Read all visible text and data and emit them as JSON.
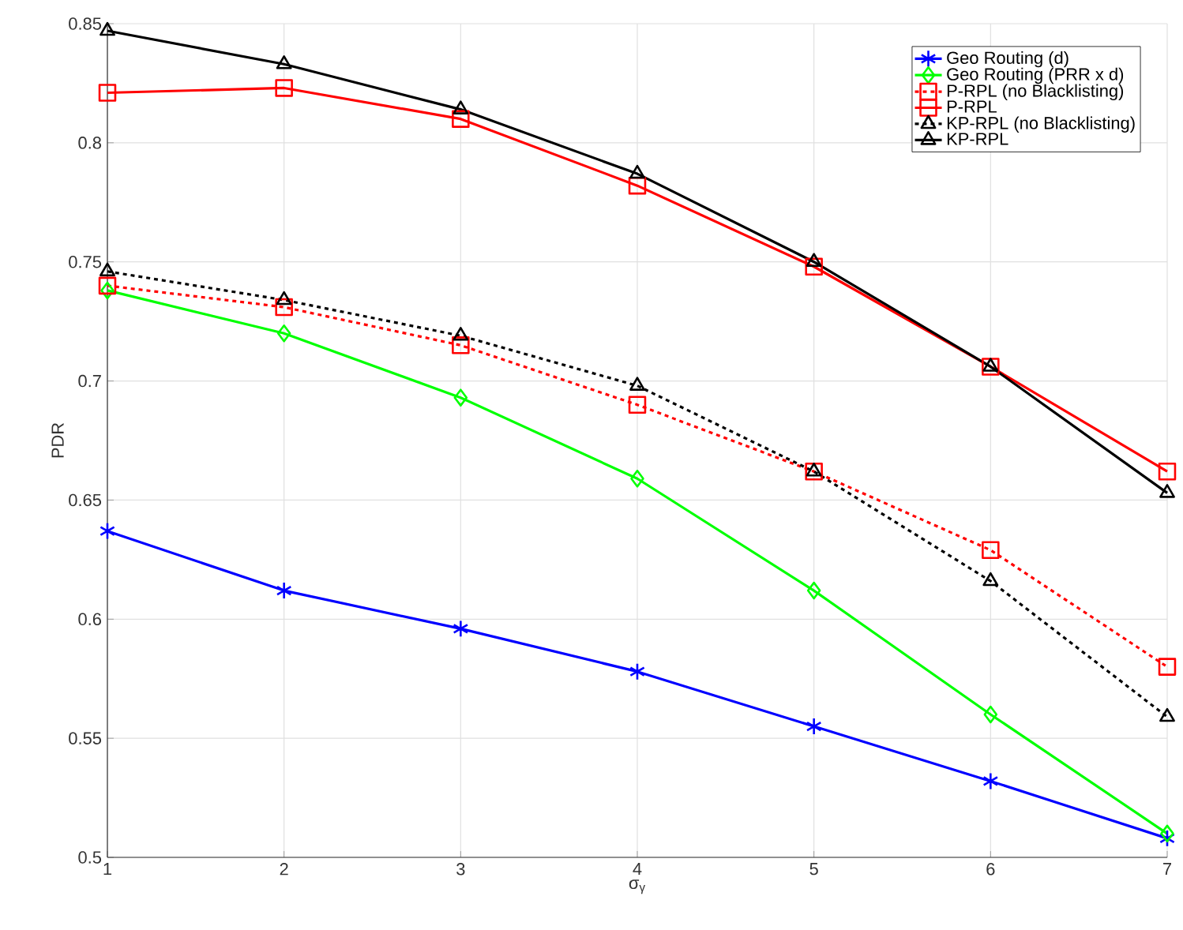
{
  "chart_data": {
    "type": "line",
    "xlabel": "σ$_{γ}$",
    "ylabel": "PDR",
    "x": [
      1,
      2,
      3,
      4,
      5,
      6,
      7
    ],
    "series": [
      {
        "name": "Geo Routing (d)",
        "color": "#0000ff",
        "marker": "cross",
        "line_style": "solid",
        "values": [
          0.637,
          0.612,
          0.596,
          0.578,
          0.555,
          0.532,
          0.508
        ]
      },
      {
        "name": "Geo Routing (PRR x d)",
        "color": "#00ff00",
        "marker": "diamond",
        "line_style": "solid",
        "values": [
          0.738,
          0.72,
          0.693,
          0.659,
          0.612,
          0.56,
          0.51
        ]
      },
      {
        "name": "P-RPL (no Blacklisting)",
        "color": "#ff0000",
        "marker": "square",
        "line_style": "dotted",
        "values": [
          0.74,
          0.731,
          0.715,
          0.69,
          0.662,
          0.629,
          0.58
        ]
      },
      {
        "name": "P-RPL",
        "color": "#ff0000",
        "marker": "square",
        "line_style": "solid",
        "values": [
          0.821,
          0.823,
          0.81,
          0.782,
          0.748,
          0.706,
          0.662
        ]
      },
      {
        "name": "KP-RPL (no Blacklisting)",
        "color": "#000000",
        "marker": "triangle",
        "line_style": "dotted",
        "values": [
          0.746,
          0.734,
          0.719,
          0.698,
          0.662,
          0.616,
          0.559
        ]
      },
      {
        "name": "KP-RPL",
        "color": "#000000",
        "marker": "triangle",
        "line_style": "solid",
        "values": [
          0.847,
          0.833,
          0.814,
          0.787,
          0.75,
          0.706,
          0.653
        ]
      }
    ],
    "xlim": [
      1,
      7
    ],
    "ylim": [
      0.5,
      0.85
    ],
    "xticks": [
      1,
      2,
      3,
      4,
      5,
      6,
      7
    ],
    "yticks": [
      0.5,
      0.55,
      0.6,
      0.65,
      0.7,
      0.75,
      0.8,
      0.85
    ],
    "grid": true,
    "legend": "top right"
  }
}
